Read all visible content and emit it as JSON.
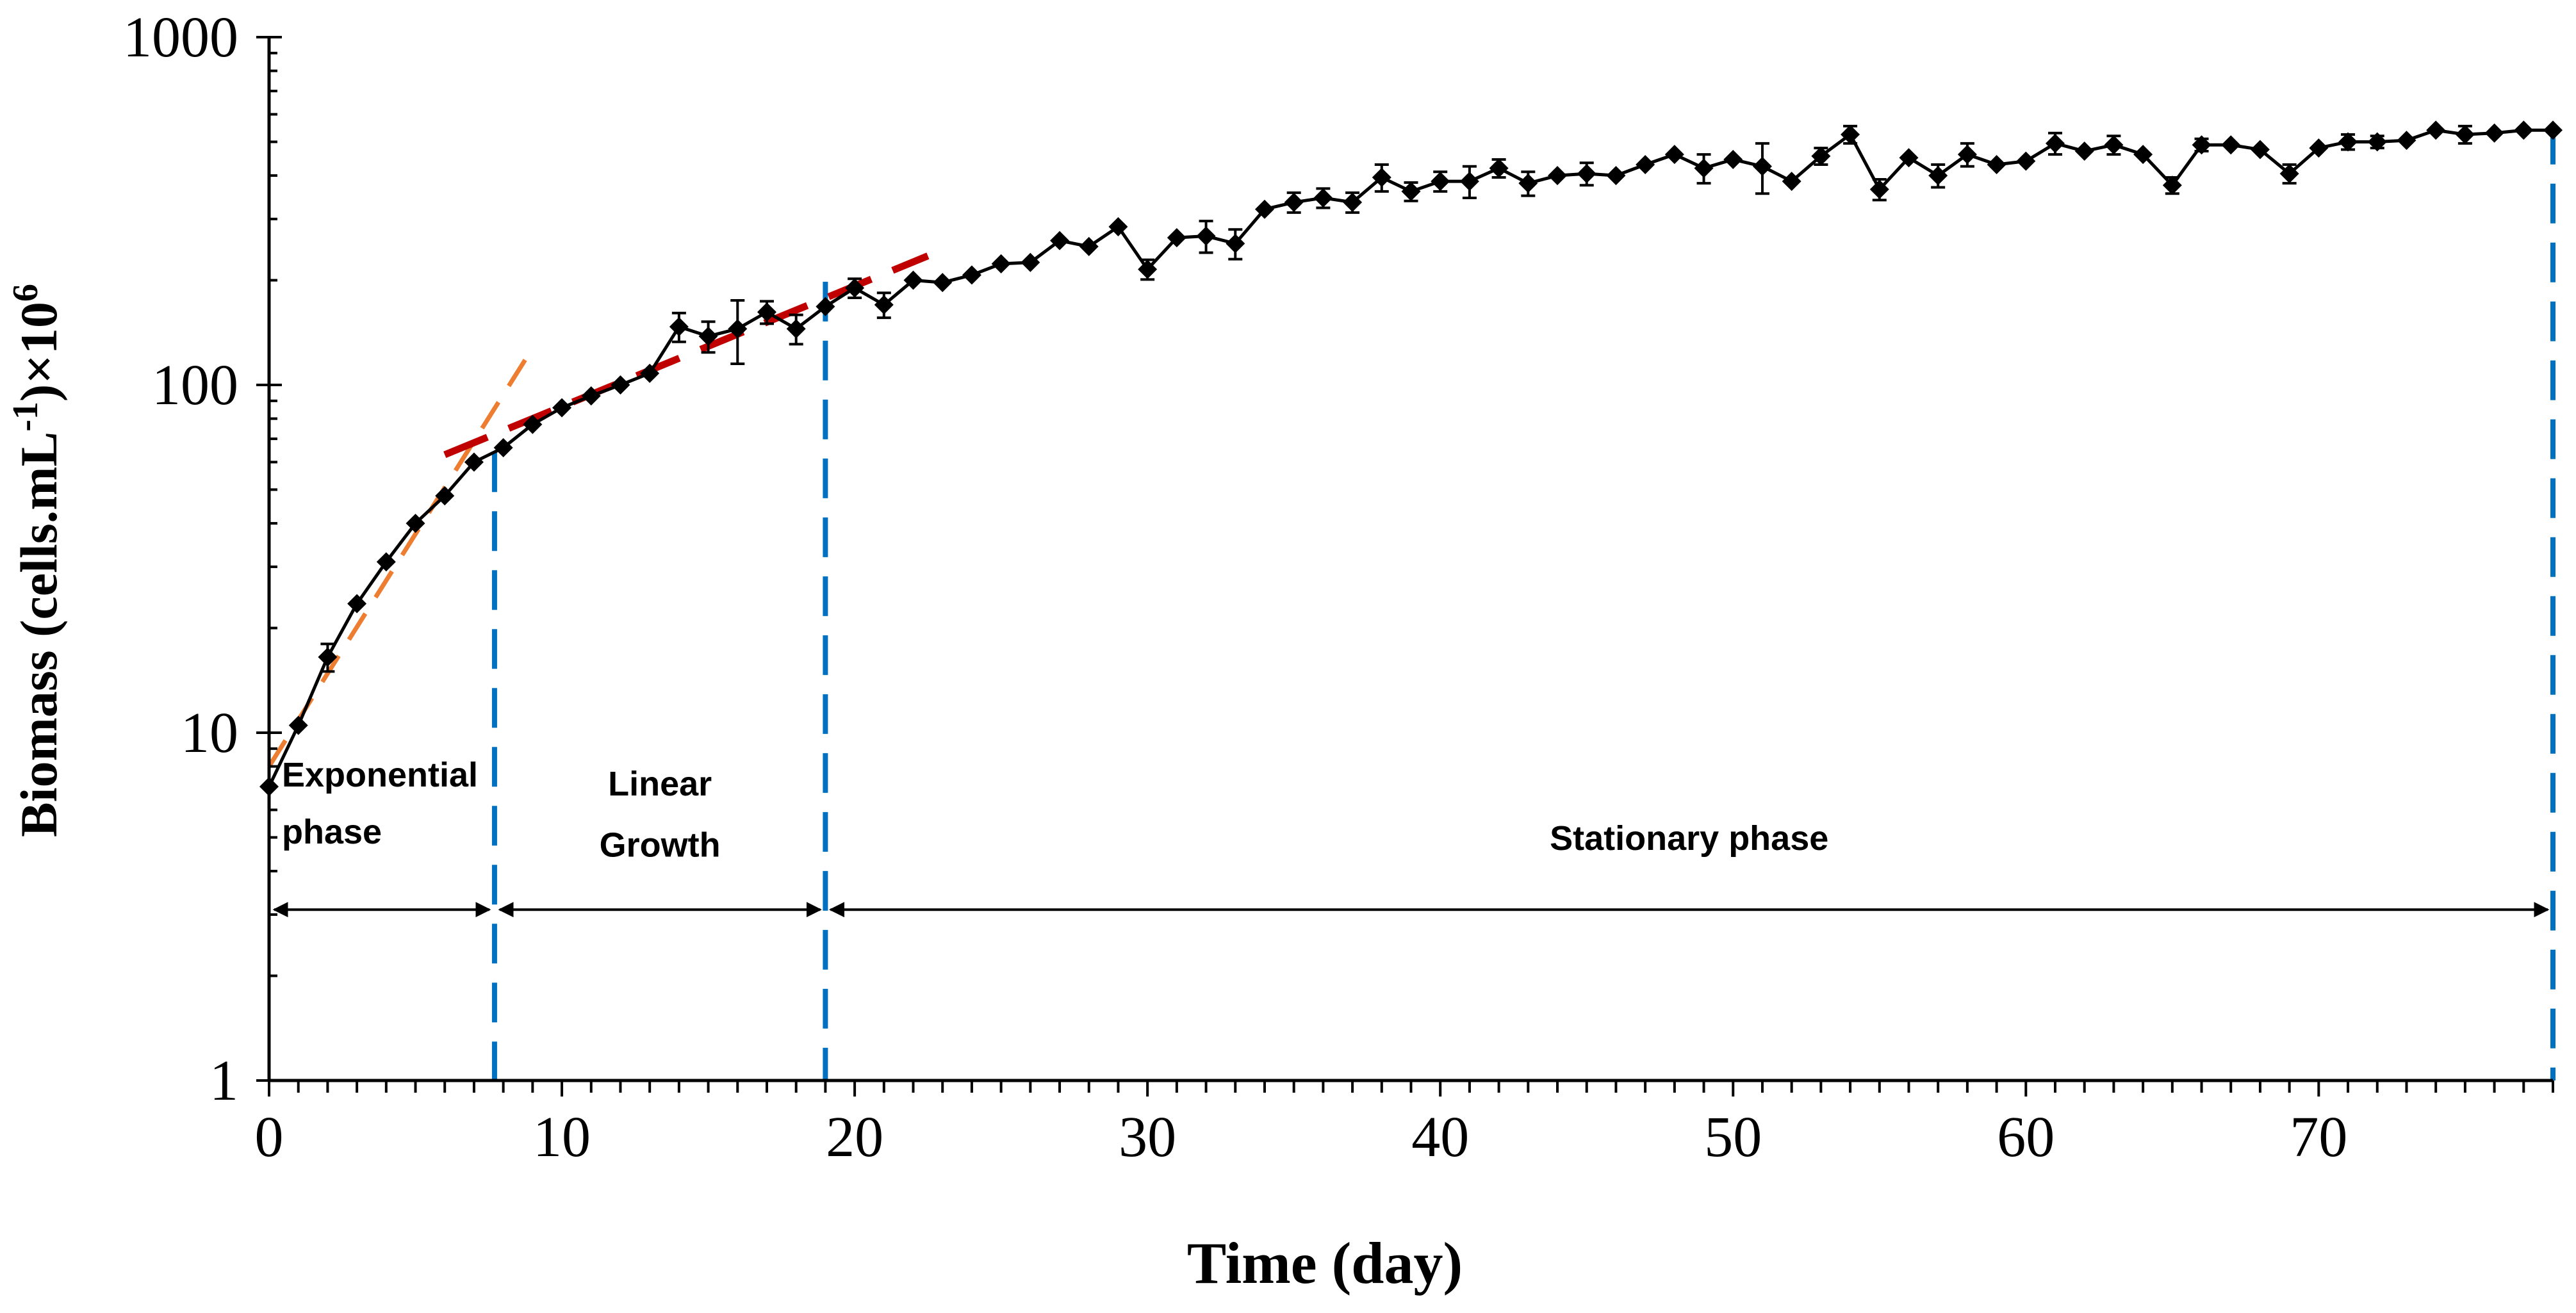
{
  "chart_data": {
    "type": "line",
    "title": "",
    "xlabel": "Time (day)",
    "ylabel": "Biomass (cells.mL",
    "ylabel_sup1": "-1",
    "ylabel_mid": ")×10",
    "ylabel_sup2": "6",
    "yscale": "log",
    "xlim": [
      0,
      78
    ],
    "ylim": [
      1,
      1000
    ],
    "x_ticks": [
      0,
      10,
      20,
      30,
      40,
      50,
      60,
      70
    ],
    "x_tick_labels": [
      "0",
      "10",
      "20",
      "30",
      "40",
      "50",
      "60",
      "70"
    ],
    "y_ticks": [
      1,
      10,
      100,
      1000
    ],
    "y_tick_labels": [
      "1",
      "10",
      "100",
      "1000"
    ],
    "colors": {
      "series": "#000000",
      "exp_fit": "#ED7D31",
      "linear_fit": "#C00000",
      "phase_boundary": "#0070C0",
      "arrow": "#000000"
    },
    "series": [
      {
        "name": "Biomass",
        "x": [
          0,
          1,
          2,
          3,
          4,
          5,
          6,
          7,
          8,
          9,
          10,
          11,
          12,
          13,
          14,
          15,
          16,
          17,
          18,
          19,
          20,
          21,
          22,
          23,
          24,
          25,
          26,
          27,
          28,
          29,
          30,
          31,
          32,
          33,
          34,
          35,
          36,
          37,
          38,
          39,
          40,
          41,
          42,
          43,
          44,
          45,
          46,
          47,
          48,
          49,
          50,
          51,
          52,
          53,
          54,
          55,
          56,
          57,
          58,
          59,
          60,
          61,
          62,
          63,
          64,
          65,
          66,
          67,
          68,
          69,
          70,
          71,
          72,
          73,
          74,
          75,
          76,
          77,
          78
        ],
        "values": [
          7,
          10.5,
          16.5,
          23.5,
          31,
          40,
          48,
          60,
          66,
          77,
          86,
          93,
          100,
          108,
          147,
          138,
          145,
          162,
          145,
          168,
          190,
          170,
          200,
          197,
          207,
          223,
          225,
          260,
          250,
          285,
          215,
          265,
          268,
          255,
          320,
          335,
          345,
          335,
          395,
          360,
          385,
          385,
          420,
          380,
          400,
          405,
          400,
          430,
          460,
          420,
          445,
          425,
          385,
          455,
          525,
          365,
          450,
          400,
          460,
          430,
          440,
          495,
          470,
          490,
          460,
          375,
          490,
          490,
          475,
          405,
          480,
          500,
          500,
          505,
          540,
          525,
          530,
          540,
          540
        ],
        "errors": [
          0,
          0,
          1.5,
          0,
          0,
          0,
          0,
          0,
          0,
          0,
          0,
          0,
          0,
          0,
          14,
          14,
          30,
          12,
          14,
          0,
          12,
          14,
          0,
          0,
          0,
          0,
          0,
          0,
          0,
          0,
          14,
          0,
          28,
          25,
          0,
          22,
          22,
          22,
          35,
          22,
          25,
          40,
          25,
          30,
          0,
          30,
          0,
          0,
          0,
          40,
          0,
          70,
          0,
          25,
          30,
          25,
          0,
          30,
          35,
          0,
          0,
          35,
          0,
          30,
          0,
          20,
          20,
          0,
          0,
          25,
          0,
          25,
          20,
          0,
          0,
          30,
          0,
          0,
          0
        ]
      }
    ],
    "fits": [
      {
        "name": "Exponential fit",
        "type": "dashed",
        "x": [
          0,
          8.8
        ],
        "y": [
          8,
          120
        ]
      },
      {
        "name": "Linear growth fit",
        "type": "dashed",
        "x": [
          6,
          22.5
        ],
        "y": [
          63,
          235
        ]
      }
    ],
    "phase_boundaries": [
      7.7,
      19,
      78
    ],
    "phases": [
      {
        "label_line1": "Exponential",
        "label_line2": "phase",
        "from": 0,
        "to": 7.7,
        "label_y": 7,
        "label_y2": 4.8
      },
      {
        "label_line1": "Linear",
        "label_line2": "Growth",
        "from": 7.7,
        "to": 19,
        "label_y": 6.6,
        "label_y2": 4.4
      },
      {
        "label_line1": "Stationary phase",
        "label_line2": "",
        "from": 19,
        "to": 78,
        "label_y": 4.6,
        "label_y2": 0
      }
    ],
    "arrow_y": 3.1
  }
}
